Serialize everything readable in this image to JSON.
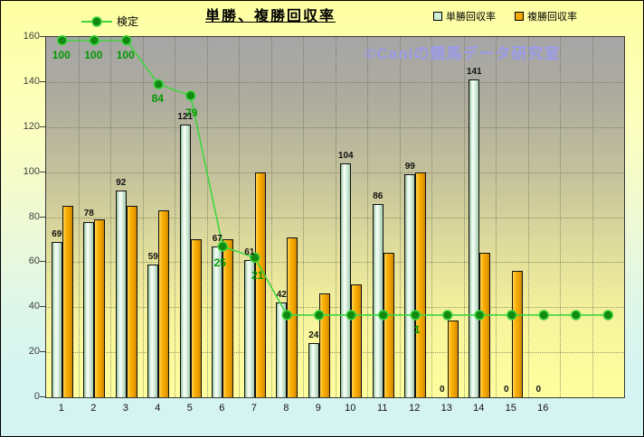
{
  "title": "単勝、複勝回収率",
  "watermark": "©Caniの競馬データ研究室",
  "legend": {
    "line_label": "検定",
    "bar1_label": "単勝回収率",
    "bar2_label": "複勝回収率"
  },
  "colors": {
    "tansho_fill": "#cfeed8",
    "fukusho_fill": "#f5a800",
    "line": "#3dd63d",
    "marker_fill": "#128a12",
    "line_label": "#009900",
    "watermark": "#9a9aea",
    "plot_top": "#a6a6a6",
    "plot_bottom": "#ffff9e"
  },
  "chart_data": {
    "type": "bar",
    "title": "単勝、複勝回収率",
    "categories": [
      "1",
      "2",
      "3",
      "4",
      "5",
      "6",
      "7",
      "8",
      "9",
      "10",
      "11",
      "12",
      "13",
      "14",
      "15",
      "16",
      "",
      ""
    ],
    "series": [
      {
        "name": "単勝回収率",
        "type": "bar",
        "values": [
          69,
          78,
          92,
          59,
          121,
          67,
          61,
          42,
          24,
          104,
          86,
          99,
          0,
          141,
          0,
          0,
          null,
          null
        ]
      },
      {
        "name": "複勝回収率",
        "type": "bar",
        "values": [
          85,
          79,
          85,
          83,
          70,
          70,
          100,
          71,
          46,
          50,
          64,
          100,
          34,
          64,
          56,
          0,
          null,
          null
        ]
      },
      {
        "name": "検定",
        "type": "line",
        "labels": [
          "100",
          "100",
          "100",
          "84",
          "79",
          "25",
          "21",
          "",
          "",
          "",
          "",
          "1",
          "",
          "",
          "",
          "",
          "",
          ""
        ],
        "plot_values": [
          158.5,
          158.5,
          158.5,
          139,
          134,
          67,
          62,
          36.5,
          36.5,
          36.5,
          36.5,
          36.5,
          36.5,
          36.5,
          36.5,
          36.5,
          36.5,
          36.5
        ]
      }
    ],
    "xlabel": "",
    "ylabel": "",
    "ylim": [
      0,
      160
    ],
    "yticks": [
      0,
      20,
      40,
      60,
      80,
      100,
      120,
      140,
      160
    ],
    "grid": true,
    "legend_position": "top"
  }
}
